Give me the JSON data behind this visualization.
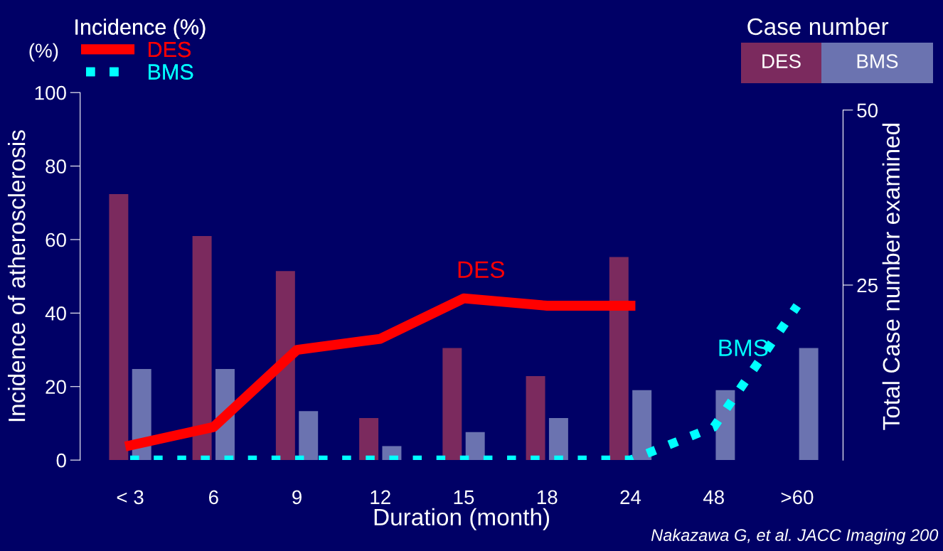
{
  "chart_data": {
    "type": "bar",
    "ylabel": "Incidence of atherosclerosis",
    "y2label": "Total Case number examined",
    "xlabel": "Duration (month)",
    "legend_title": "Incidence (%)",
    "legend": "top left",
    "categories": [
      "< 3",
      "6",
      "9",
      "12",
      "15",
      "18",
      "24",
      "48",
      ">60"
    ],
    "series": [
      {
        "name": "DES",
        "axis": "y2",
        "color": "#7b2a5e",
        "values": [
          38,
          32,
          27,
          6,
          16,
          12,
          29,
          null,
          null
        ]
      },
      {
        "name": "BMS",
        "axis": "y2",
        "color": "#6b73b0",
        "values": [
          13,
          13,
          7,
          2,
          4,
          6,
          10,
          10,
          16
        ]
      },
      {
        "name": "DES",
        "type": "line",
        "line_style": "solid",
        "color": "#ff0000",
        "values": [
          4,
          9,
          30,
          33,
          44,
          42,
          42,
          null,
          null
        ]
      },
      {
        "name": "BMS",
        "type": "line",
        "line_style": "dotted",
        "color": "#00ffff",
        "values": [
          0,
          0,
          0,
          0,
          0,
          0,
          0,
          9,
          42
        ]
      }
    ],
    "ylim": [
      0,
      100
    ],
    "yticks": [
      0,
      20,
      40,
      60,
      80,
      100
    ],
    "y2lim": [
      0,
      52.5
    ],
    "y2ticks": [
      25,
      50
    ],
    "grid": false,
    "marker": "none",
    "annotations": [
      "(%)",
      "Case number",
      "DES",
      "BMS",
      "Nakazawa G, et al. JACC Imaging 200"
    ]
  }
}
